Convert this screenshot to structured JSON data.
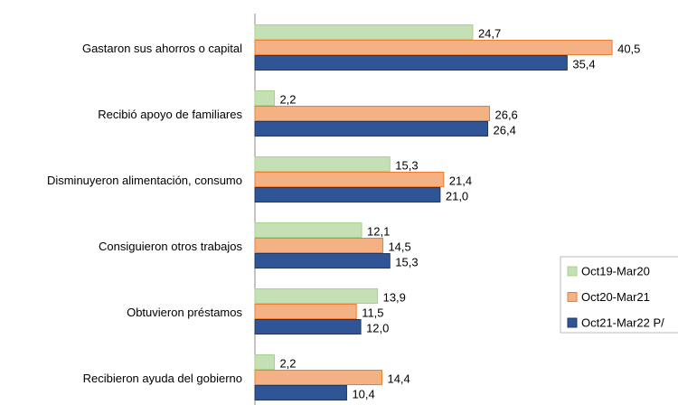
{
  "chart_data": {
    "type": "hbar",
    "categories": [
      "Gastaron sus ahorros o capital",
      "Recibió apoyo de familiares",
      "Disminuyeron alimentación, consumo",
      "Consiguieron otros trabajos",
      "Obtuvieron préstamos",
      "Recibieron ayuda del gobierno"
    ],
    "series": [
      {
        "name": "Oct19-Mar20",
        "color": "#c5e0b4",
        "values": [
          24.7,
          2.2,
          15.3,
          12.1,
          13.9,
          2.2
        ],
        "value_labels": [
          "24,7",
          "2,2",
          "15,3",
          "12,1",
          "13,9",
          "2,2"
        ]
      },
      {
        "name": "Oct20-Mar21",
        "color": "#f4b183",
        "values": [
          40.5,
          26.6,
          21.4,
          14.5,
          11.5,
          14.4
        ],
        "value_labels": [
          "40,5",
          "26,6",
          "21,4",
          "14,5",
          "11,5",
          "14,4"
        ]
      },
      {
        "name": "Oct21-Mar22 P/",
        "color": "#2f5597",
        "values": [
          35.4,
          26.4,
          21.0,
          15.3,
          12.0,
          10.4
        ],
        "value_labels": [
          "35,4",
          "26,4",
          "21,0",
          "15,3",
          "12,0",
          "10,4"
        ]
      }
    ],
    "xlim": [
      0,
      45
    ],
    "legend": "right"
  }
}
